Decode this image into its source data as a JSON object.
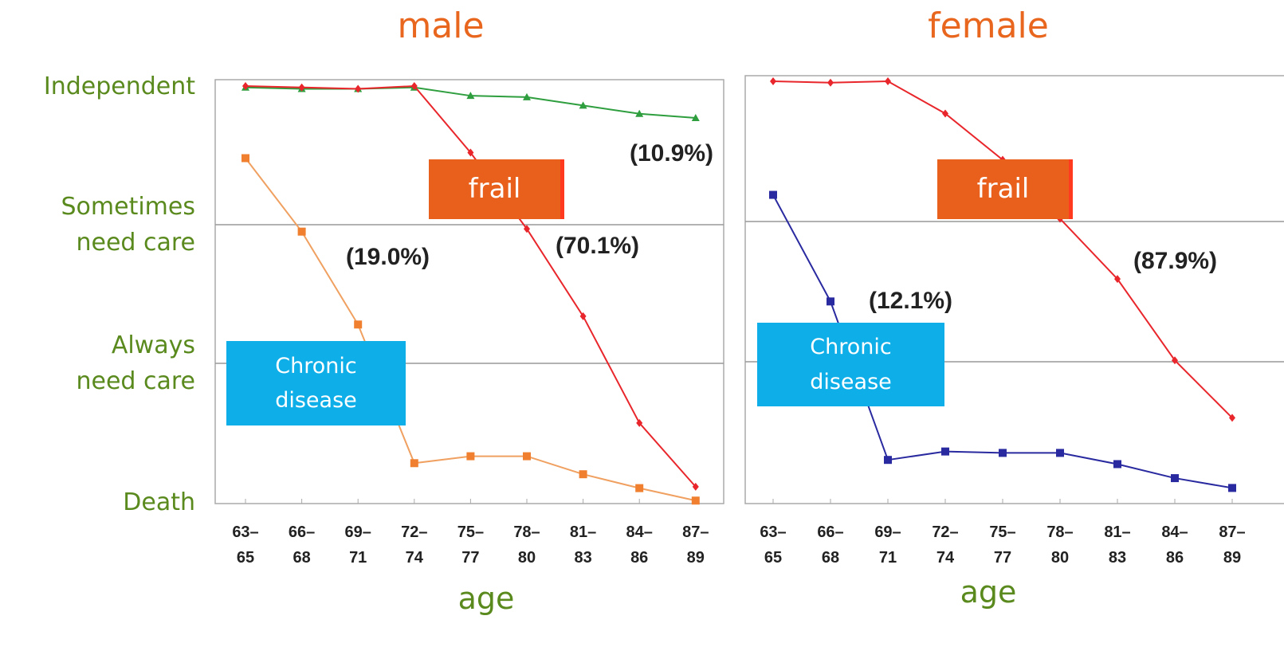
{
  "chart_data": [
    {
      "type": "line",
      "title": "male",
      "x_label": "age",
      "categories": [
        "63–65",
        "66–68",
        "69–71",
        "72–74",
        "75–77",
        "78–80",
        "81–83",
        "84–86",
        "87–89"
      ],
      "ylim": [
        0,
        3
      ],
      "yticks": [
        {
          "value": 3,
          "label": "Independent"
        },
        {
          "value": 2,
          "label": "Sometimes need care"
        },
        {
          "value": 1,
          "label": "Always need care"
        },
        {
          "value": 0,
          "label": "Death"
        }
      ],
      "grid": true,
      "series": [
        {
          "color": "#2e9e3e",
          "marker": "triangle",
          "values": [
            2.99,
            2.98,
            2.98,
            2.99,
            2.93,
            2.92,
            2.86,
            2.8,
            2.77
          ]
        },
        {
          "color": "#e8262b",
          "marker": "diamond",
          "values": [
            3.0,
            2.99,
            2.98,
            3.0,
            2.52,
            1.97,
            1.34,
            0.57,
            0.11
          ]
        },
        {
          "color": "#f0a060",
          "marker": "square",
          "values": [
            2.48,
            1.95,
            1.28,
            0.28,
            0.33,
            0.33,
            0.2,
            0.1,
            0.01
          ]
        }
      ],
      "annotations": [
        "(10.9%)",
        "(19.0%)",
        "(70.1%)",
        "frail",
        "Chronic disease"
      ]
    },
    {
      "type": "line",
      "title": "female",
      "x_label": "age",
      "categories": [
        "63–65",
        "66–68",
        "69–71",
        "72–74",
        "75–77",
        "78–80",
        "81–83",
        "84–86",
        "87–89"
      ],
      "ylim": [
        0,
        3
      ],
      "grid": true,
      "series": [
        {
          "color": "#e8262b",
          "marker": "diamond",
          "values": [
            3.0,
            2.99,
            3.0,
            2.77,
            2.44,
            2.02,
            1.59,
            1.01,
            0.6
          ]
        },
        {
          "color": "#2a2aa0",
          "marker": "square",
          "values": [
            2.19,
            1.43,
            0.3,
            0.36,
            0.35,
            0.35,
            0.27,
            0.17,
            0.1
          ]
        }
      ],
      "annotations": [
        "(12.1%)",
        "(87.9%)",
        "frail",
        "Chronic disease"
      ]
    }
  ]
}
